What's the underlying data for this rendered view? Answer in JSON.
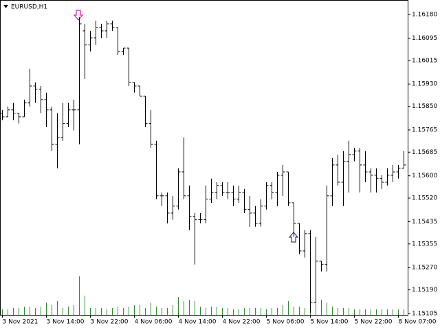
{
  "chart_data": {
    "type": "ohlc",
    "title": "EURUSD,H1",
    "categories": [
      "3 Nov 2021",
      null,
      null,
      null,
      null,
      null,
      null,
      null,
      "3 Nov 14:00",
      null,
      null,
      null,
      null,
      null,
      null,
      null,
      "3 Nov 22:00",
      null,
      null,
      null,
      null,
      null,
      null,
      null,
      "4 Nov 06:00",
      null,
      null,
      null,
      null,
      null,
      null,
      null,
      "4 Nov 14:00",
      null,
      null,
      null,
      null,
      null,
      null,
      null,
      "4 Nov 22:00",
      null,
      null,
      null,
      null,
      null,
      null,
      null,
      "5 Nov 06:00",
      null,
      null,
      null,
      null,
      null,
      null,
      null,
      "5 Nov 14:00",
      null,
      null,
      null,
      null,
      null,
      null,
      null,
      "5 Nov 22:00",
      null,
      null,
      null,
      null,
      null,
      null,
      null,
      "8 Nov 07:00",
      null
    ],
    "open": [
      1.15825,
      1.15812,
      1.15837,
      1.15825,
      1.15812,
      1.15862,
      1.15923,
      1.15911,
      1.15874,
      1.15837,
      1.15713,
      1.15738,
      1.15788,
      1.15837,
      1.15837,
      1.16121,
      1.16071,
      1.16096,
      1.16133,
      1.16121,
      1.16146,
      1.16133,
      1.16047,
      1.16059,
      1.15936,
      1.15923,
      1.15886,
      1.15788,
      1.15713,
      1.15528,
      1.15528,
      1.15466,
      1.15491,
      1.15614,
      1.15528,
      1.15454,
      1.15442,
      1.15442,
      1.15516,
      1.1554,
      1.15565,
      1.1554,
      1.1554,
      1.15516,
      1.1554,
      1.15479,
      1.15466,
      1.15429,
      1.15491,
      1.15565,
      1.1554,
      1.15602,
      1.15614,
      1.15503,
      1.15429,
      1.1533,
      1.15392,
      1.15145,
      1.15293,
      1.15281,
      1.15528,
      1.15639,
      1.15577,
      1.15652,
      1.15676,
      1.15689,
      1.15639,
      1.15614,
      1.15602,
      1.1559,
      1.15577,
      1.15602,
      1.15614,
      1.15627
    ],
    "high": [
      1.15837,
      1.15849,
      1.15862,
      1.15825,
      1.15874,
      1.15985,
      1.15936,
      1.15923,
      1.15899,
      1.15849,
      1.15825,
      1.15862,
      1.15862,
      1.15874,
      1.1617,
      1.16146,
      1.16121,
      1.16158,
      1.16146,
      1.16158,
      1.16158,
      1.16133,
      1.16059,
      1.16059,
      1.15936,
      1.15923,
      1.15886,
      1.15837,
      1.15726,
      1.1554,
      1.1554,
      1.15528,
      1.15627,
      1.15738,
      1.15565,
      1.15466,
      1.15466,
      1.15565,
      1.1559,
      1.15577,
      1.15577,
      1.15577,
      1.15565,
      1.15565,
      1.15553,
      1.15528,
      1.15491,
      1.15516,
      1.15577,
      1.15577,
      1.15614,
      1.15639,
      1.15614,
      1.15503,
      1.15429,
      1.15405,
      1.15405,
      1.1538,
      1.15293,
      1.15565,
      1.15664,
      1.15676,
      1.15689,
      1.15726,
      1.15701,
      1.15701,
      1.15689,
      1.15627,
      1.15627,
      1.15602,
      1.15627,
      1.15639,
      1.15639,
      1.15689
    ],
    "low": [
      1.158,
      1.15812,
      1.158,
      1.15788,
      1.15812,
      1.15849,
      1.15862,
      1.15825,
      1.15775,
      1.15689,
      1.15627,
      1.15726,
      1.15775,
      1.15763,
      1.15713,
      1.15948,
      1.16047,
      1.16071,
      1.16096,
      1.16096,
      1.16121,
      1.16034,
      1.16034,
      1.15923,
      1.15899,
      1.15886,
      1.15775,
      1.15701,
      1.15516,
      1.15491,
      1.15429,
      1.15442,
      1.15479,
      1.15516,
      1.15405,
      1.15281,
      1.15429,
      1.15429,
      1.15503,
      1.15516,
      1.15528,
      1.15516,
      1.15491,
      1.15503,
      1.15466,
      1.15417,
      1.15417,
      1.15417,
      1.15479,
      1.15516,
      1.15491,
      1.15528,
      1.15491,
      1.1538,
      1.15318,
      1.15306,
      1.15108,
      1.15145,
      1.15256,
      1.15256,
      1.15491,
      1.15565,
      1.15491,
      1.1554,
      1.15652,
      1.1554,
      1.15577,
      1.1554,
      1.1554,
      1.15553,
      1.15565,
      1.15577,
      1.1559,
      1.15627
    ],
    "close": [
      1.15812,
      1.15837,
      1.15825,
      1.15812,
      1.15862,
      1.15923,
      1.15911,
      1.15874,
      1.15837,
      1.15713,
      1.15738,
      1.15788,
      1.15837,
      1.15837,
      1.16146,
      1.16071,
      1.16096,
      1.16133,
      1.16121,
      1.16146,
      1.16133,
      1.16047,
      1.16059,
      1.15936,
      1.15923,
      1.15886,
      1.15788,
      1.15713,
      1.15528,
      1.15528,
      1.15466,
      1.15491,
      1.15614,
      1.15528,
      1.15454,
      1.15442,
      1.15442,
      1.15516,
      1.1554,
      1.15565,
      1.1554,
      1.1554,
      1.15516,
      1.1554,
      1.15479,
      1.15466,
      1.15429,
      1.15491,
      1.15565,
      1.1554,
      1.15602,
      1.15614,
      1.15503,
      1.15429,
      1.1533,
      1.15392,
      1.15145,
      1.15293,
      1.15281,
      1.15528,
      1.15639,
      1.15577,
      1.15652,
      1.15676,
      1.15689,
      1.15639,
      1.15614,
      1.15602,
      1.1559,
      1.15577,
      1.15602,
      1.15614,
      1.15627,
      1.15639
    ],
    "volume": [
      400,
      400,
      500,
      500,
      600,
      600,
      500,
      600,
      900,
      700,
      1000,
      500,
      600,
      700,
      2800,
      1400,
      500,
      500,
      500,
      400,
      500,
      600,
      500,
      600,
      700,
      700,
      500,
      900,
      600,
      500,
      500,
      700,
      1300,
      1000,
      1100,
      1000,
      600,
      500,
      600,
      600,
      500,
      500,
      400,
      400,
      500,
      500,
      500,
      500,
      400,
      500,
      500,
      700,
      1000,
      600,
      600,
      500,
      1100,
      1000,
      1100,
      900,
      600,
      500,
      500,
      500,
      400,
      400,
      400,
      400,
      400,
      400,
      400,
      400,
      400,
      400
    ],
    "color": "#000000",
    "volume_color": "#2e8b2e",
    "ylim": [
      1.151,
      1.16232
    ],
    "yticks": [
      {
        "value": 1.1618,
        "label": "1.16180"
      },
      {
        "value": 1.16095,
        "label": "1.16095"
      },
      {
        "value": 1.16015,
        "label": "1.16015"
      },
      {
        "value": 1.1593,
        "label": "1.15930"
      },
      {
        "value": 1.1585,
        "label": "1.15850"
      },
      {
        "value": 1.15765,
        "label": "1.15765"
      },
      {
        "value": 1.15685,
        "label": "1.15685"
      },
      {
        "value": 1.156,
        "label": "1.15600"
      },
      {
        "value": 1.1552,
        "label": "1.15520"
      },
      {
        "value": 1.15435,
        "label": "1.15435"
      },
      {
        "value": 1.15355,
        "label": "1.15355"
      },
      {
        "value": 1.1527,
        "label": "1.15270"
      },
      {
        "value": 1.1519,
        "label": "1.15190"
      },
      {
        "value": 1.15105,
        "label": "1.15105"
      }
    ],
    "grid": false
  }
}
